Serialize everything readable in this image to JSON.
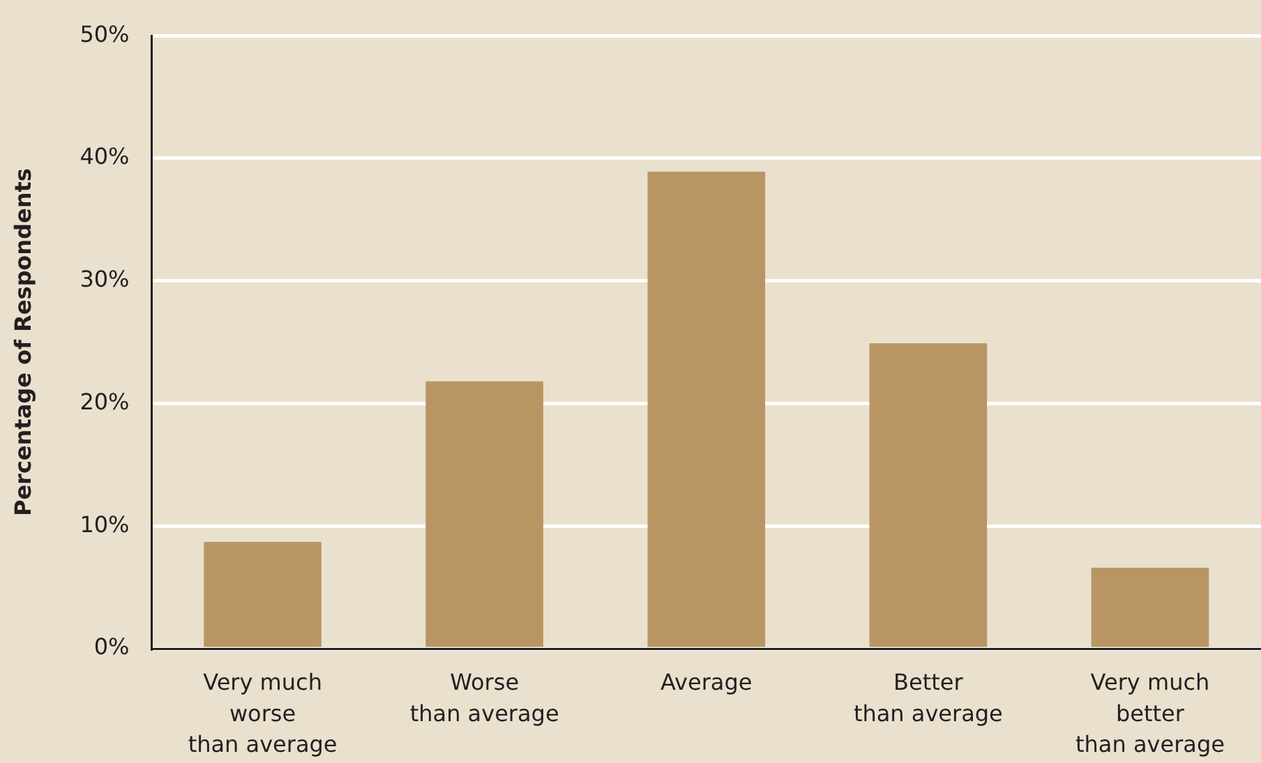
{
  "chart_data": {
    "type": "bar",
    "categories": [
      "Very much\nworse\nthan average",
      "Worse\nthan average",
      "Average",
      "Better\nthan average",
      "Very much\nbetter\nthan average"
    ],
    "values": [
      8.7,
      21.8,
      38.9,
      24.9,
      6.6
    ],
    "color": "#b89664",
    "ylabel": "Percentage of Respondents",
    "ylim": [
      0,
      50
    ],
    "yticks": [
      {
        "value": 0,
        "label": "0%"
      },
      {
        "value": 10,
        "label": "10%"
      },
      {
        "value": 20,
        "label": "20%"
      },
      {
        "value": 30,
        "label": "30%"
      },
      {
        "value": 40,
        "label": "40%"
      },
      {
        "value": 50,
        "label": "50%"
      }
    ],
    "grid": "y"
  }
}
